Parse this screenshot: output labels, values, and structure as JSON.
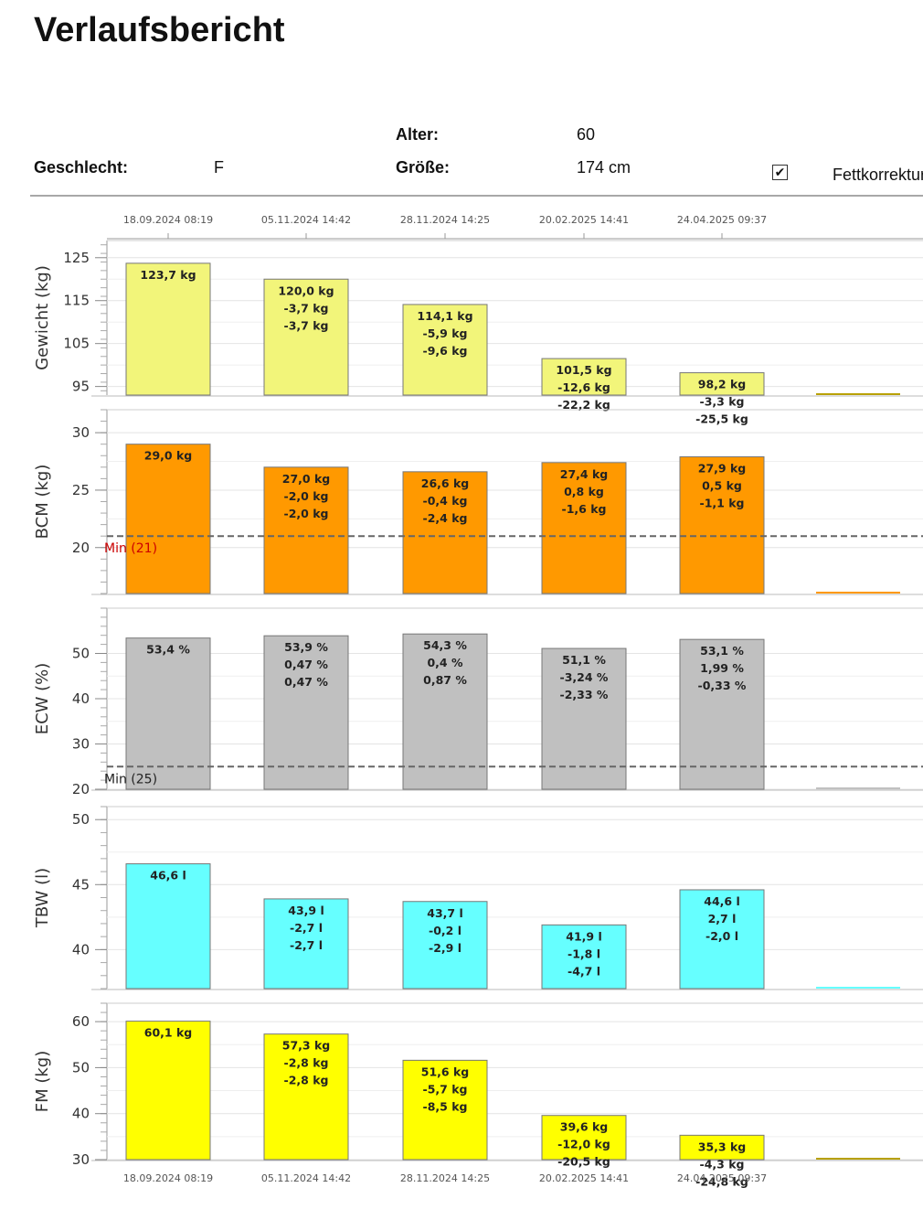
{
  "title": "Verlaufsbericht",
  "patient": {
    "age_label": "Alter:",
    "age_value": "60",
    "sex_label": "Geschlecht:",
    "sex_value": "F",
    "height_label": "Größe:",
    "height_value": "174 cm",
    "fat_correction_label": "Fettkorrektur",
    "fat_correction_checked": true
  },
  "chart_data": {
    "type": "bar",
    "dates": [
      "18.09.2024 08:19",
      "05.11.2024 14:42",
      "28.11.2024 14:25",
      "20.02.2025 14:41",
      "24.04.2025 09:37"
    ],
    "panels": [
      {
        "ylabel": "Gewicht (kg)",
        "color": "#F2F57A",
        "ylim": [
          93,
          129
        ],
        "ticks": [
          95,
          105,
          115,
          125
        ],
        "values": [
          123.7,
          120.0,
          114.1,
          101.5,
          98.2
        ],
        "labels": [
          [
            "123,7 kg"
          ],
          [
            "120,0 kg",
            "-3,7 kg",
            "-3,7 kg"
          ],
          [
            "114,1 kg",
            "-5,9 kg",
            "-9,6 kg"
          ],
          [
            "101,5 kg",
            "-12,6 kg",
            "-22,2 kg"
          ],
          [
            "98,2 kg",
            "-3,3 kg",
            "-25,5 kg"
          ]
        ]
      },
      {
        "ylabel": "BCM (kg)",
        "color": "#FF9900",
        "ylim": [
          16,
          32
        ],
        "ticks": [
          20,
          25,
          30
        ],
        "values": [
          29.0,
          27.0,
          26.6,
          27.4,
          27.9
        ],
        "labels": [
          [
            "29,0 kg"
          ],
          [
            "27,0 kg",
            "-2,0 kg",
            "-2,0 kg"
          ],
          [
            "26,6 kg",
            "-0,4 kg",
            "-2,4 kg"
          ],
          [
            "27,4 kg",
            "0,8 kg",
            "-1,6 kg"
          ],
          [
            "27,9 kg",
            "0,5 kg",
            "-1,1 kg"
          ]
        ],
        "min_line": {
          "value": 21,
          "label": "Min (21)",
          "color": "#cc0000"
        }
      },
      {
        "ylabel": "ECW (%)",
        "color": "#C0C0C0",
        "ylim": [
          20,
          60
        ],
        "ticks": [
          20,
          30,
          40,
          50
        ],
        "values": [
          53.4,
          53.9,
          54.3,
          51.1,
          53.1
        ],
        "labels": [
          [
            "53,4 %"
          ],
          [
            "53,9 %",
            "0,47 %",
            "0,47 %"
          ],
          [
            "54,3 %",
            "0,4 %",
            "0,87 %"
          ],
          [
            "51,1 %",
            "-3,24 %",
            "-2,33 %"
          ],
          [
            "53,1 %",
            "1,99 %",
            "-0,33 %"
          ]
        ],
        "min_line": {
          "value": 25,
          "label": "Min (25)",
          "color": "#222222"
        }
      },
      {
        "ylabel": "TBW (l)",
        "color": "#66FFFF",
        "ylim": [
          37,
          51
        ],
        "ticks": [
          40,
          45,
          50
        ],
        "values": [
          46.6,
          43.9,
          43.7,
          41.9,
          44.6
        ],
        "labels": [
          [
            "46,6 l"
          ],
          [
            "43,9 l",
            "-2,7 l",
            "-2,7 l"
          ],
          [
            "43,7 l",
            "-0,2 l",
            "-2,9 l"
          ],
          [
            "41,9 l",
            "-1,8 l",
            "-4,7 l"
          ],
          [
            "44,6 l",
            "2,7 l",
            "-2,0 l"
          ]
        ]
      },
      {
        "ylabel": "FM (kg)",
        "color": "#FFFF00",
        "ylim": [
          30,
          64
        ],
        "ticks": [
          30,
          40,
          50,
          60
        ],
        "values": [
          60.1,
          57.3,
          51.6,
          39.6,
          35.3
        ],
        "labels": [
          [
            "60,1 kg"
          ],
          [
            "57,3 kg",
            "-2,8 kg",
            "-2,8 kg"
          ],
          [
            "51,6 kg",
            "-5,7 kg",
            "-8,5 kg"
          ],
          [
            "39,6 kg",
            "-12,0 kg",
            "-20,5 kg"
          ],
          [
            "35,3 kg",
            "-4,3 kg",
            "-24,8 kg"
          ]
        ]
      }
    ]
  }
}
